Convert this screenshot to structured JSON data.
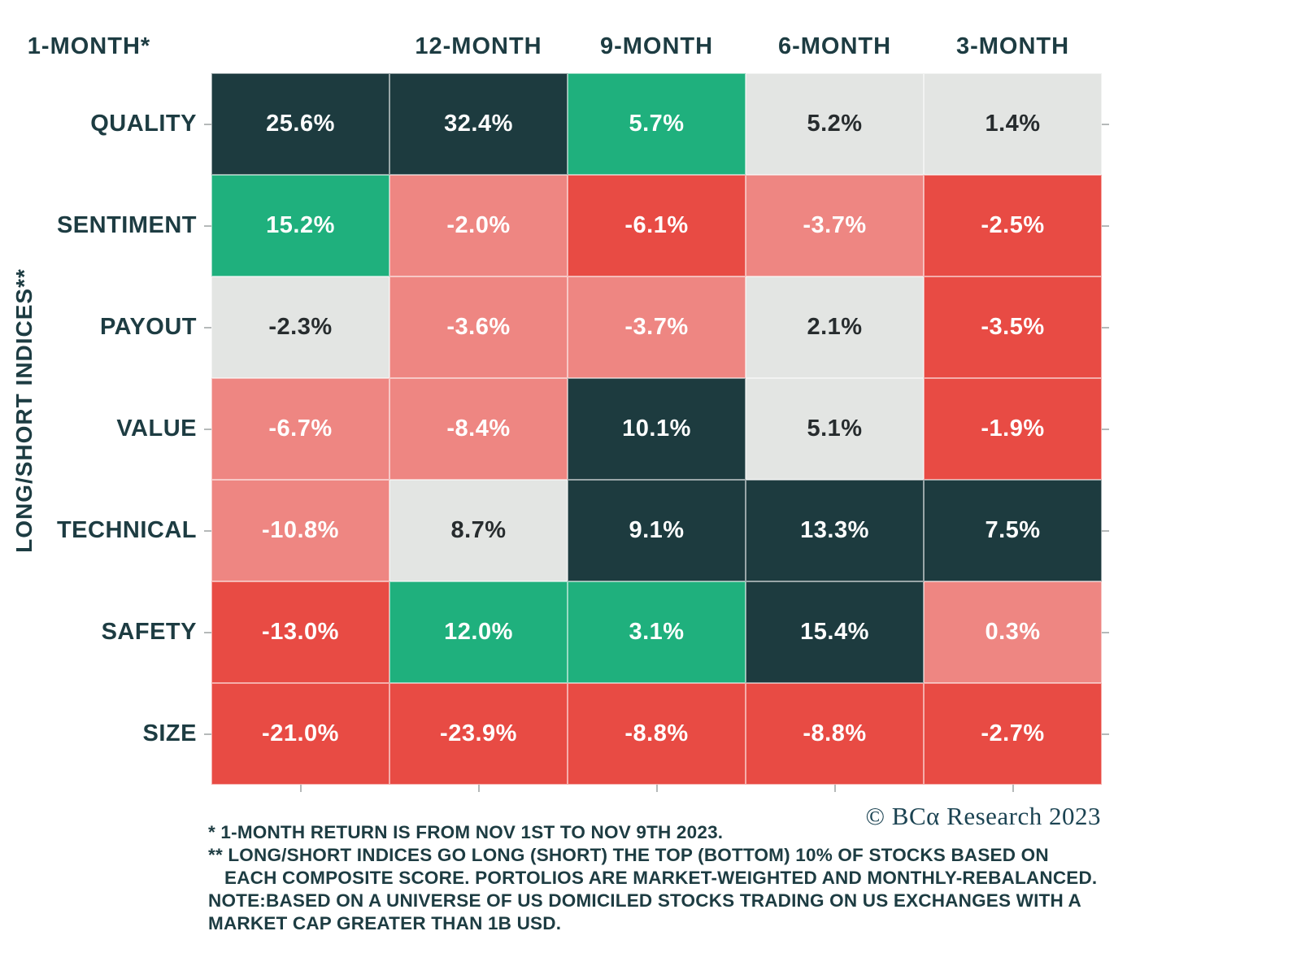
{
  "colors": {
    "dark": "#1d3b3f",
    "green": "#1fb07d",
    "gray": "#e3e5e3",
    "pink": "#ee8682",
    "red": "#e84b44",
    "text_on_color": "#ffffff",
    "text_on_gray": "#272c2e",
    "label": "#1d3c42",
    "tick": "#b5b9b9"
  },
  "chart_data": {
    "type": "heatmap",
    "unit": "%",
    "ylabel": "LONG/SHORT INDICES**",
    "columns": [
      "12-MONTH",
      "9-MONTH",
      "6-MONTH",
      "3-MONTH",
      "1-MONTH*"
    ],
    "rows": [
      "QUALITY",
      "SENTIMENT",
      "PAYOUT",
      "VALUE",
      "TECHNICAL",
      "SAFETY",
      "SIZE"
    ],
    "values": [
      [
        25.6,
        32.4,
        5.7,
        5.2,
        1.4
      ],
      [
        15.2,
        -2.0,
        -6.1,
        -3.7,
        -2.5
      ],
      [
        -2.3,
        -3.6,
        -3.7,
        2.1,
        -3.5
      ],
      [
        -6.7,
        -8.4,
        10.1,
        5.1,
        -1.9
      ],
      [
        -10.8,
        8.7,
        9.1,
        13.3,
        7.5
      ],
      [
        -13.0,
        12.0,
        3.1,
        15.4,
        0.3
      ],
      [
        -21.0,
        -23.9,
        -8.8,
        -8.8,
        -2.7
      ]
    ],
    "cell_colors": [
      [
        "dark",
        "dark",
        "green",
        "gray",
        "gray"
      ],
      [
        "green",
        "pink",
        "red",
        "pink",
        "red"
      ],
      [
        "gray",
        "pink",
        "pink",
        "gray",
        "red"
      ],
      [
        "pink",
        "pink",
        "dark",
        "gray",
        "red"
      ],
      [
        "pink",
        "gray",
        "dark",
        "dark",
        "dark"
      ],
      [
        "red",
        "green",
        "green",
        "dark",
        "pink"
      ],
      [
        "red",
        "red",
        "red",
        "red",
        "red"
      ]
    ]
  },
  "footer": {
    "copyright": "© BCα Research 2023",
    "notes": [
      "*  1-MONTH RETURN IS FROM NOV 1ST TO NOV 9TH 2023.",
      "** LONG/SHORT INDICES GO LONG (SHORT) THE TOP (BOTTOM) 10% OF STOCKS BASED ON",
      "EACH COMPOSITE SCORE. PORTOLIOS ARE MARKET-WEIGHTED AND MONTHLY-REBALANCED.",
      "NOTE:BASED ON A UNIVERSE OF US DOMICILED STOCKS TRADING ON US EXCHANGES WITH A",
      "MARKET CAP GREATER THAN 1B USD."
    ]
  }
}
